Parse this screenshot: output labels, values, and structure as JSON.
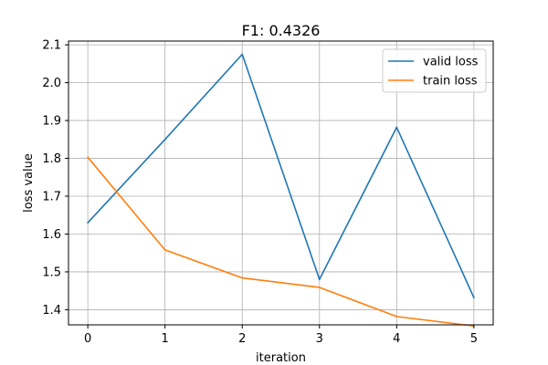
{
  "chart_data": {
    "type": "line",
    "title": "F1: 0.4326",
    "xlabel": "iteration",
    "ylabel": "loss value",
    "x": [
      0,
      1,
      2,
      3,
      4,
      5
    ],
    "xticks": [
      "0",
      "1",
      "2",
      "3",
      "4",
      "5"
    ],
    "yticks": [
      "1.4",
      "1.5",
      "1.6",
      "1.7",
      "1.8",
      "1.9",
      "2.0",
      "2.1"
    ],
    "xlim": [
      -0.25,
      5.25
    ],
    "ylim": [
      1.36,
      2.11
    ],
    "grid": true,
    "legend_position": "top-right",
    "series": [
      {
        "name": "valid loss",
        "color": "#1f77b4",
        "values": [
          1.63,
          1.85,
          2.075,
          1.48,
          1.882,
          1.432
        ]
      },
      {
        "name": "train loss",
        "color": "#ff7f0e",
        "values": [
          1.803,
          1.558,
          1.484,
          1.459,
          1.382,
          1.357
        ]
      }
    ]
  }
}
